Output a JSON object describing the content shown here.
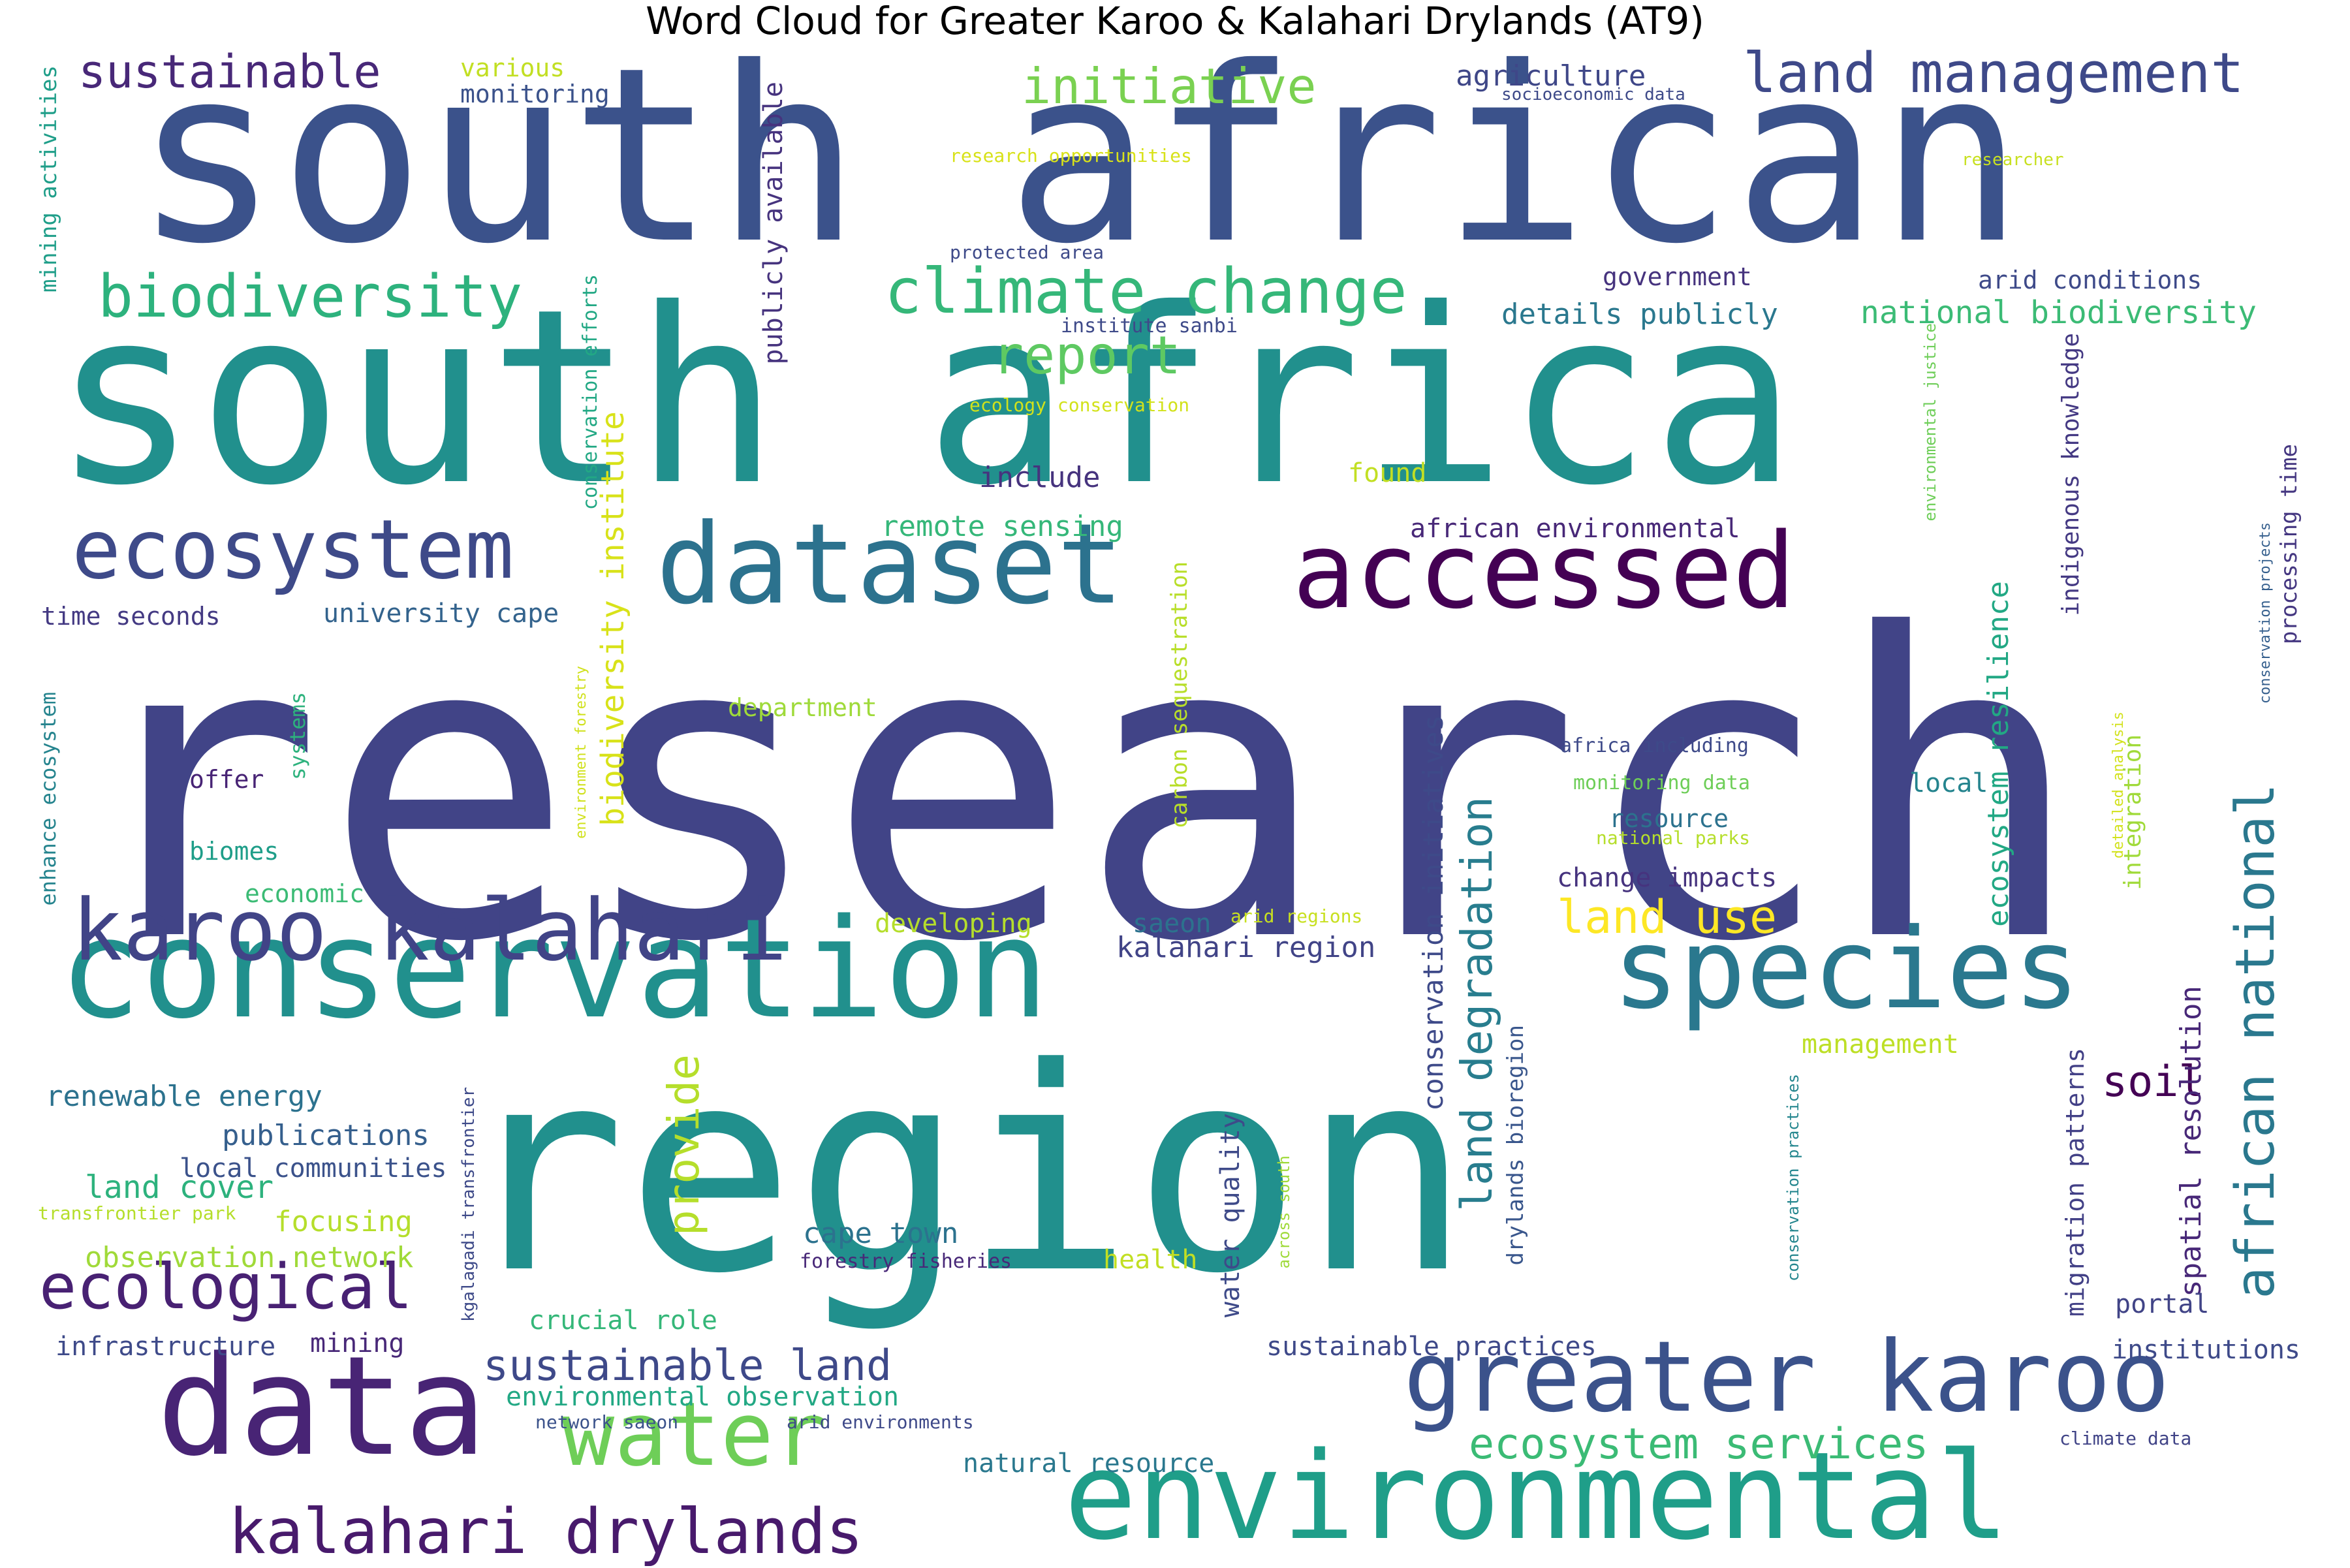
{
  "title": "Word Cloud for Greater Karoo & Kalahari Drylands (AT9)",
  "palette": "viridis",
  "words": [
    {
      "text": "research",
      "color": "#414487",
      "orientation": "horizontal"
    },
    {
      "text": "region",
      "color": "#21908d",
      "orientation": "horizontal"
    },
    {
      "text": "south africa",
      "color": "#21908d",
      "orientation": "horizontal"
    },
    {
      "text": "south african",
      "color": "#3b528b",
      "orientation": "horizontal"
    },
    {
      "text": "conservation",
      "color": "#21908d",
      "orientation": "horizontal"
    },
    {
      "text": "data",
      "color": "#482475",
      "orientation": "horizontal"
    },
    {
      "text": "environmental",
      "color": "#1f9e89",
      "orientation": "horizontal"
    },
    {
      "text": "dataset",
      "color": "#2c728e",
      "orientation": "horizontal"
    },
    {
      "text": "accessed",
      "color": "#440154",
      "orientation": "horizontal"
    },
    {
      "text": "species",
      "color": "#2a788e",
      "orientation": "horizontal"
    },
    {
      "text": "greater karoo",
      "color": "#3b528b",
      "orientation": "horizontal"
    },
    {
      "text": "karoo kalahari",
      "color": "#414487",
      "orientation": "horizontal"
    },
    {
      "text": "water",
      "color": "#6ece58",
      "orientation": "horizontal"
    },
    {
      "text": "ecosystem",
      "color": "#3e4a89",
      "orientation": "horizontal"
    },
    {
      "text": "kalahari drylands",
      "color": "#481a6c",
      "orientation": "horizontal"
    },
    {
      "text": "land management",
      "color": "#3e4989",
      "orientation": "horizontal"
    },
    {
      "text": "climate change",
      "color": "#35b779",
      "orientation": "horizontal"
    },
    {
      "text": "biodiversity",
      "color": "#2db27d",
      "orientation": "horizontal"
    },
    {
      "text": "ecological",
      "color": "#482173",
      "orientation": "horizontal"
    },
    {
      "text": "sustainable",
      "color": "#482878",
      "orientation": "horizontal"
    },
    {
      "text": "initiative",
      "color": "#7ad151",
      "orientation": "horizontal"
    },
    {
      "text": "report",
      "color": "#5ec962",
      "orientation": "horizontal"
    },
    {
      "text": "sustainable land",
      "color": "#3e4989",
      "orientation": "horizontal"
    },
    {
      "text": "ecosystem services",
      "color": "#3bbb75",
      "orientation": "horizontal"
    },
    {
      "text": "land use",
      "color": "#fde725",
      "orientation": "horizontal"
    },
    {
      "text": "soil",
      "color": "#440154",
      "orientation": "horizontal"
    },
    {
      "text": "african national",
      "color": "#2a788e",
      "orientation": "vertical"
    },
    {
      "text": "land degradation",
      "color": "#287d8e",
      "orientation": "vertical"
    },
    {
      "text": "provide",
      "color": "#b5de2b",
      "orientation": "vertical"
    },
    {
      "text": "biodiversity institute",
      "color": "#d8e219",
      "orientation": "vertical"
    },
    {
      "text": "conservation initiatives",
      "color": "#3e4a89",
      "orientation": "vertical"
    },
    {
      "text": "ecosystem resilience",
      "color": "#22a884",
      "orientation": "vertical"
    },
    {
      "text": "spatial resolution",
      "color": "#482878",
      "orientation": "vertical"
    },
    {
      "text": "water quality",
      "color": "#3e4a89",
      "orientation": "vertical"
    },
    {
      "text": "publicly available",
      "color": "#46337e",
      "orientation": "vertical"
    },
    {
      "text": "migration patterns",
      "color": "#424086",
      "orientation": "vertical"
    },
    {
      "text": "integration",
      "color": "#a0da39",
      "orientation": "vertical"
    },
    {
      "text": "carbon sequestration",
      "color": "#b8de29",
      "orientation": "vertical"
    },
    {
      "text": "indigenous knowledge",
      "color": "#443983",
      "orientation": "vertical"
    },
    {
      "text": "processing time",
      "color": "#453781",
      "orientation": "vertical"
    },
    {
      "text": "drylands bioregion",
      "color": "#39568c",
      "orientation": "vertical"
    },
    {
      "text": "conservation efforts",
      "color": "#22a884",
      "orientation": "vertical"
    },
    {
      "text": "mining activities",
      "color": "#1f9e89",
      "orientation": "vertical"
    },
    {
      "text": "enhance ecosystem",
      "color": "#25848e",
      "orientation": "vertical"
    },
    {
      "text": "systems",
      "color": "#2db27d",
      "orientation": "vertical"
    },
    {
      "text": "kgalagadi transfrontier",
      "color": "#3e4a89",
      "orientation": "vertical"
    },
    {
      "text": "environment forestry",
      "color": "#d0e11c",
      "orientation": "vertical"
    },
    {
      "text": "environmental justice",
      "color": "#6ece58",
      "orientation": "vertical"
    },
    {
      "text": "detailed analysis",
      "color": "#d2e21b",
      "orientation": "vertical"
    },
    {
      "text": "across south",
      "color": "#9fda3a",
      "orientation": "vertical"
    },
    {
      "text": "conservation practices",
      "color": "#24868e",
      "orientation": "vertical"
    },
    {
      "text": "conservation projects",
      "color": "#355f8d",
      "orientation": "vertical"
    },
    {
      "text": "remote sensing",
      "color": "#35b779",
      "orientation": "horizontal"
    },
    {
      "text": "african environmental",
      "color": "#482878",
      "orientation": "horizontal"
    },
    {
      "text": "national biodiversity",
      "color": "#3bbb75",
      "orientation": "horizontal"
    },
    {
      "text": "details publicly",
      "color": "#2a788e",
      "orientation": "horizontal"
    },
    {
      "text": "government",
      "color": "#46337e",
      "orientation": "horizontal"
    },
    {
      "text": "arid conditions",
      "color": "#3e4a89",
      "orientation": "horizontal"
    },
    {
      "text": "agriculture",
      "color": "#3f4788",
      "orientation": "horizontal"
    },
    {
      "text": "various",
      "color": "#c2df23",
      "orientation": "horizontal"
    },
    {
      "text": "monitoring",
      "color": "#3b528b",
      "orientation": "horizontal"
    },
    {
      "text": "socioeconomic data",
      "color": "#3e4a89",
      "orientation": "horizontal"
    },
    {
      "text": "research opportunities",
      "color": "#d8e219",
      "orientation": "horizontal"
    },
    {
      "text": "researcher",
      "color": "#c8e020",
      "orientation": "horizontal"
    },
    {
      "text": "protected area",
      "color": "#3e4a89",
      "orientation": "horizontal"
    },
    {
      "text": "institute sanbi",
      "color": "#3e4a89",
      "orientation": "horizontal"
    },
    {
      "text": "ecology conservation",
      "color": "#d2e21b",
      "orientation": "horizontal"
    },
    {
      "text": "include",
      "color": "#46337e",
      "orientation": "horizontal"
    },
    {
      "text": "found",
      "color": "#c2df23",
      "orientation": "horizontal"
    },
    {
      "text": "university cape",
      "color": "#33638d",
      "orientation": "horizontal"
    },
    {
      "text": "time seconds",
      "color": "#443a83",
      "orientation": "horizontal"
    },
    {
      "text": "department",
      "color": "#9fda3a",
      "orientation": "horizontal"
    },
    {
      "text": "offer",
      "color": "#482475",
      "orientation": "horizontal"
    },
    {
      "text": "biomes",
      "color": "#1f9e89",
      "orientation": "horizontal"
    },
    {
      "text": "economic",
      "color": "#3bbb75",
      "orientation": "horizontal"
    },
    {
      "text": "africa including",
      "color": "#3e4a89",
      "orientation": "horizontal"
    },
    {
      "text": "monitoring data",
      "color": "#6ece58",
      "orientation": "horizontal"
    },
    {
      "text": "national parks",
      "color": "#b5de2b",
      "orientation": "horizontal"
    },
    {
      "text": "local",
      "color": "#25848e",
      "orientation": "horizontal"
    },
    {
      "text": "resource",
      "color": "#2c728e",
      "orientation": "horizontal"
    },
    {
      "text": "change impacts",
      "color": "#46337e",
      "orientation": "horizontal"
    },
    {
      "text": "developing",
      "color": "#b5de2b",
      "orientation": "horizontal"
    },
    {
      "text": "saeon",
      "color": "#2c728e",
      "orientation": "horizontal"
    },
    {
      "text": "arid regions",
      "color": "#c8e020",
      "orientation": "horizontal"
    },
    {
      "text": "kalahari region",
      "color": "#414487",
      "orientation": "horizontal"
    },
    {
      "text": "management",
      "color": "#bddf26",
      "orientation": "horizontal"
    },
    {
      "text": "renewable energy",
      "color": "#2c728e",
      "orientation": "horizontal"
    },
    {
      "text": "publications",
      "color": "#355f8d",
      "orientation": "horizontal"
    },
    {
      "text": "local communities",
      "color": "#3b528b",
      "orientation": "horizontal"
    },
    {
      "text": "land cover",
      "color": "#2db27d",
      "orientation": "horizontal"
    },
    {
      "text": "transfrontier park",
      "color": "#b5de2b",
      "orientation": "horizontal"
    },
    {
      "text": "focusing",
      "color": "#b5de2b",
      "orientation": "horizontal"
    },
    {
      "text": "observation network",
      "color": "#a0da39",
      "orientation": "horizontal"
    },
    {
      "text": "cape town",
      "color": "#2c728e",
      "orientation": "horizontal"
    },
    {
      "text": "forestry fisheries",
      "color": "#482878",
      "orientation": "horizontal"
    },
    {
      "text": "health",
      "color": "#c2df23",
      "orientation": "horizontal"
    },
    {
      "text": "infrastructure",
      "color": "#3e4a89",
      "orientation": "horizontal"
    },
    {
      "text": "mining",
      "color": "#482878",
      "orientation": "horizontal"
    },
    {
      "text": "crucial role",
      "color": "#35b779",
      "orientation": "horizontal"
    },
    {
      "text": "sustainable practices",
      "color": "#3e4989",
      "orientation": "horizontal"
    },
    {
      "text": "portal",
      "color": "#414487",
      "orientation": "horizontal"
    },
    {
      "text": "institutions",
      "color": "#3e4a89",
      "orientation": "horizontal"
    },
    {
      "text": "environmental observation",
      "color": "#22a884",
      "orientation": "horizontal"
    },
    {
      "text": "network saeon",
      "color": "#3b528b",
      "orientation": "horizontal"
    },
    {
      "text": "arid environments",
      "color": "#3e4989",
      "orientation": "horizontal"
    },
    {
      "text": "natural resource",
      "color": "#2a788e",
      "orientation": "horizontal"
    },
    {
      "text": "climate data",
      "color": "#414487",
      "orientation": "horizontal"
    }
  ]
}
